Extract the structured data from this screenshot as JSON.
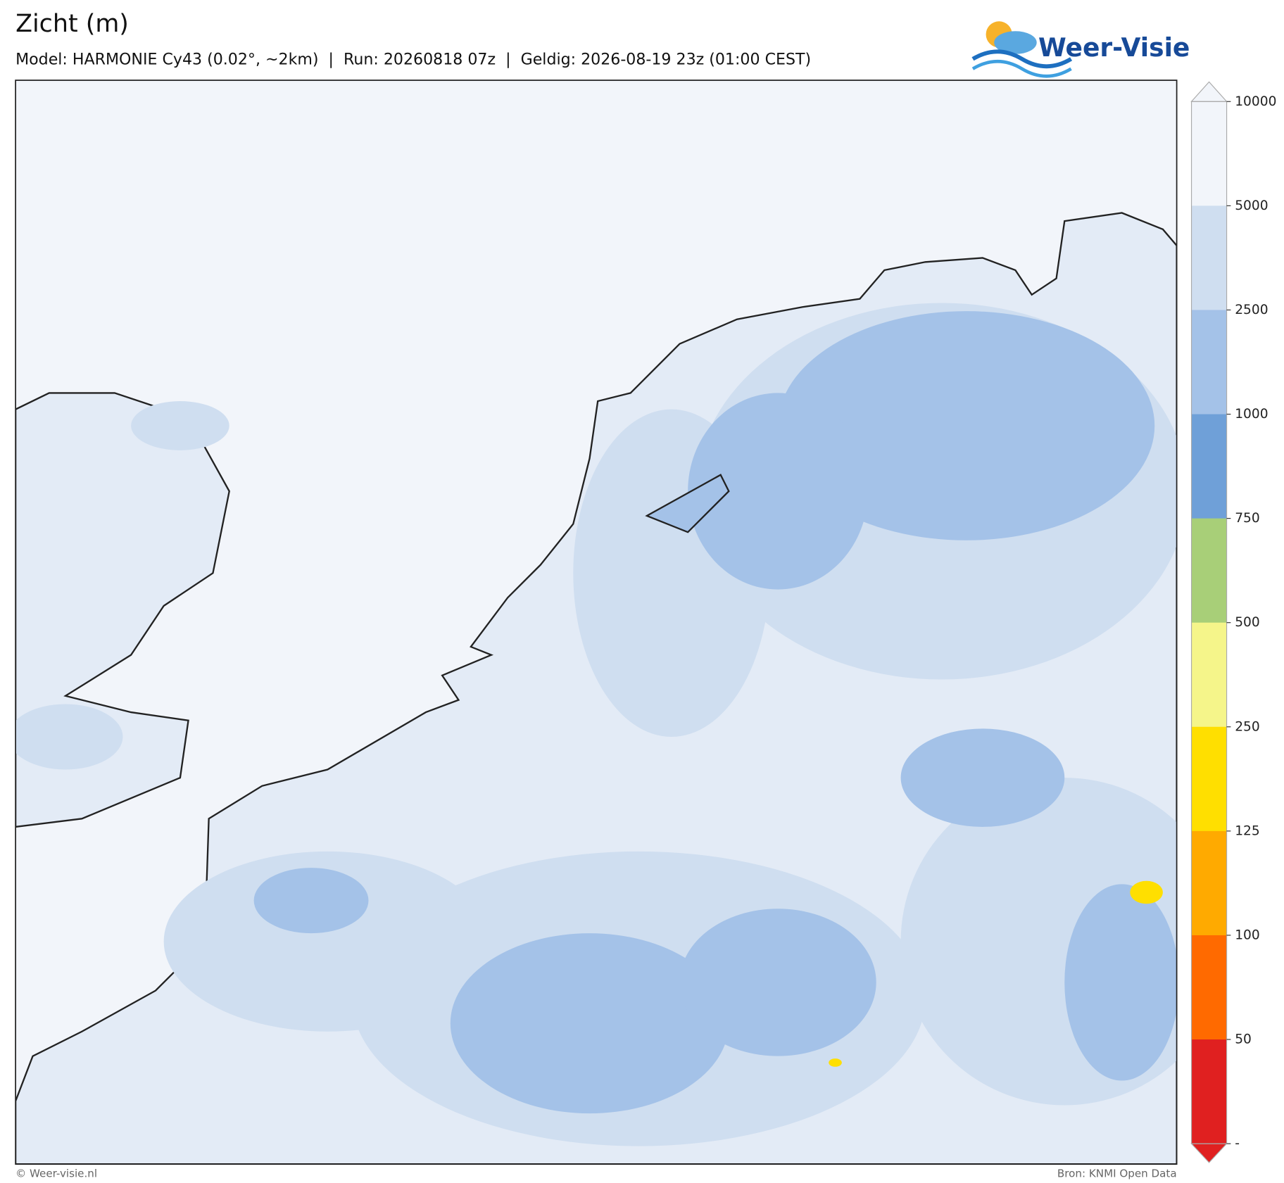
{
  "header": {
    "title": "Zicht (m)",
    "subtitle": "Model: HARMONIE Cy43 (0.02°, ~2km)  |  Run: 20260818 07z  |  Geldig: 2026-08-19 23z (01:00 CEST)"
  },
  "logo": {
    "text": "Weer-Visie"
  },
  "colorbar": {
    "ticks": [
      10000,
      5000,
      2500,
      1000,
      750,
      500,
      250,
      125,
      100,
      50
    ],
    "bottom_label": "-",
    "colors": [
      "#f2f5fa",
      "#cfdef0",
      "#a4c2e8",
      "#6fa0d8",
      "#a8cf78",
      "#f5f58a",
      "#ffdf00",
      "#ffaa00",
      "#ff6a00",
      "#e02020"
    ]
  },
  "footer": {
    "copyright": "© Weer-visie.nl",
    "source": "Bron: KNMI Open Data"
  }
}
